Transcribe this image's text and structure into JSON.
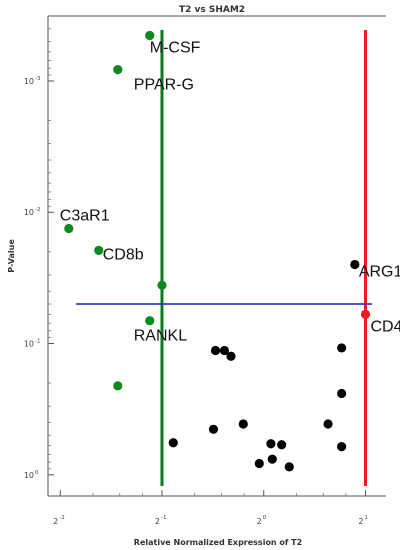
{
  "chart_data": {
    "type": "scatter",
    "title": "T2 vs SHAM2",
    "xlabel": "Relative Normalized Expression of T2",
    "ylabel": "P-Value",
    "x_scale": "log2",
    "y_scale": "log10",
    "y_inverted": true,
    "xlim": [
      0.23,
      2.3
    ],
    "ylim": [
      0.00032,
      1.45
    ],
    "x_ticks": [
      {
        "base": "2",
        "exp": "-2",
        "value": 0.25
      },
      {
        "base": "2",
        "exp": "-1",
        "value": 0.5
      },
      {
        "base": "2",
        "exp": "0",
        "value": 1
      },
      {
        "base": "2",
        "exp": "1",
        "value": 2
      }
    ],
    "y_ticks": [
      {
        "base": "10",
        "exp": "-3",
        "value": 0.001
      },
      {
        "base": "10",
        "exp": "-2",
        "value": 0.01
      },
      {
        "base": "10",
        "exp": "-1",
        "value": 0.1
      },
      {
        "base": "10",
        "exp": "0",
        "value": 1
      }
    ],
    "threshold_lines": [
      {
        "orientation": "vertical",
        "value": 0.5,
        "color": "#0b7a1e"
      },
      {
        "orientation": "vertical",
        "value": 2,
        "color": "#ee1c1c"
      },
      {
        "orientation": "horizontal",
        "value": 0.05,
        "color": "#3a3ab8"
      }
    ],
    "points": [
      {
        "x": 0.46,
        "y": 0.00045,
        "color": "#0b8a1f",
        "label": "M-CSF"
      },
      {
        "x": 0.37,
        "y": 0.00082,
        "color": "#0b8a1f",
        "label": "PPAR-G"
      },
      {
        "x": 0.265,
        "y": 0.0133,
        "color": "#0b8a1f",
        "label": "C3aR1"
      },
      {
        "x": 0.325,
        "y": 0.0195,
        "color": "#0b8a1f",
        "label": "CD8b"
      },
      {
        "x": 0.5,
        "y": 0.036,
        "color": "#0b8a1f",
        "label": ""
      },
      {
        "x": 0.46,
        "y": 0.067,
        "color": "#0b8a1f",
        "label": "RANKL"
      },
      {
        "x": 0.37,
        "y": 0.21,
        "color": "#0b8a1f",
        "label": ""
      },
      {
        "x": 1.86,
        "y": 0.025,
        "color": "#000000",
        "label": "ARG1"
      },
      {
        "x": 2.0,
        "y": 0.06,
        "color": "#ee1c1c",
        "label": "CD4"
      },
      {
        "x": 0.72,
        "y": 0.113,
        "color": "#000000",
        "label": ""
      },
      {
        "x": 0.765,
        "y": 0.113,
        "color": "#000000",
        "label": ""
      },
      {
        "x": 0.8,
        "y": 0.125,
        "color": "#000000",
        "label": ""
      },
      {
        "x": 1.7,
        "y": 0.108,
        "color": "#000000",
        "label": ""
      },
      {
        "x": 1.7,
        "y": 0.24,
        "color": "#000000",
        "label": ""
      },
      {
        "x": 0.54,
        "y": 0.57,
        "color": "#000000",
        "label": ""
      },
      {
        "x": 0.71,
        "y": 0.45,
        "color": "#000000",
        "label": ""
      },
      {
        "x": 0.87,
        "y": 0.41,
        "color": "#000000",
        "label": ""
      },
      {
        "x": 0.97,
        "y": 0.82,
        "color": "#000000",
        "label": ""
      },
      {
        "x": 1.05,
        "y": 0.58,
        "color": "#000000",
        "label": ""
      },
      {
        "x": 1.06,
        "y": 0.76,
        "color": "#000000",
        "label": ""
      },
      {
        "x": 1.13,
        "y": 0.59,
        "color": "#000000",
        "label": ""
      },
      {
        "x": 1.19,
        "y": 0.87,
        "color": "#000000",
        "label": ""
      },
      {
        "x": 1.55,
        "y": 0.41,
        "color": "#000000",
        "label": ""
      },
      {
        "x": 1.7,
        "y": 0.61,
        "color": "#000000",
        "label": ""
      }
    ]
  }
}
